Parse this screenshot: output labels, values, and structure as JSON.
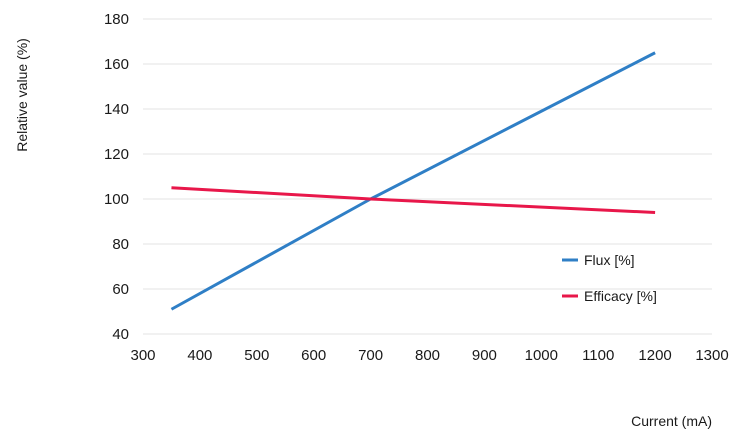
{
  "chart_data": {
    "type": "line",
    "title": "",
    "xlabel": "Current (mA)",
    "ylabel": "Relative value (%)",
    "xlim": [
      300,
      1300
    ],
    "ylim": [
      40,
      180
    ],
    "x_ticks": [
      300,
      400,
      500,
      600,
      700,
      800,
      900,
      1000,
      1100,
      1200,
      1300
    ],
    "y_ticks": [
      40,
      60,
      80,
      100,
      120,
      140,
      160,
      180
    ],
    "grid": "horizontal",
    "legend_position": "right",
    "series": [
      {
        "name": "Flux [%]",
        "color": "#2f7fc6",
        "x": [
          350,
          700,
          1200
        ],
        "y": [
          51,
          100,
          165
        ]
      },
      {
        "name": "Efficacy [%]",
        "color": "#e8174a",
        "x": [
          350,
          700,
          1200
        ],
        "y": [
          105,
          100,
          94
        ]
      }
    ]
  }
}
